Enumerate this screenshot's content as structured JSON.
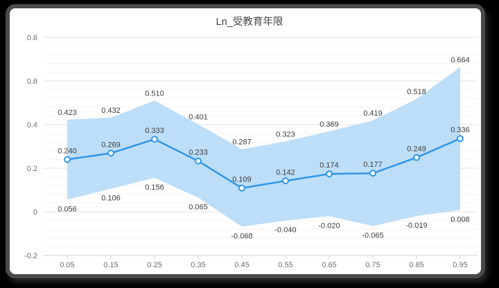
{
  "window": {
    "background": "#000000",
    "frame_color": "#4A4A4A",
    "card_color": "#FFFFFF"
  },
  "chart_data": {
    "type": "line",
    "title": "Ln_受教育年限",
    "categories": [
      "0.05",
      "0.15",
      "0.25",
      "0.35",
      "0.45",
      "0.55",
      "0.65",
      "0.75",
      "0.85",
      "0.95"
    ],
    "series": [
      {
        "name": "upper_bound",
        "values": [
          0.423,
          0.432,
          0.51,
          0.401,
          0.287,
          0.323,
          0.369,
          0.419,
          0.518,
          0.664
        ]
      },
      {
        "name": "estimate",
        "values": [
          0.24,
          0.269,
          0.333,
          0.233,
          0.109,
          0.142,
          0.174,
          0.177,
          0.249,
          0.336
        ]
      },
      {
        "name": "lower_bound",
        "values": [
          0.056,
          0.106,
          0.156,
          0.065,
          -0.068,
          -0.04,
          -0.02,
          -0.065,
          -0.019,
          0.008
        ]
      }
    ],
    "band": {
      "upper_series": "upper_bound",
      "lower_series": "lower_bound"
    },
    "xlabel": "",
    "ylabel": "",
    "ylim": [
      -0.2,
      0.8
    ],
    "yticks": [
      0.8,
      0.6,
      0.4,
      0.2,
      0,
      -0.2
    ],
    "minor_grid_step": 0.04,
    "grid": true,
    "legend": false,
    "data_labels_decimals": 3,
    "colors": {
      "line": "#2E96E8",
      "band": "#BDDEF8",
      "marker_fill": "#FFFFFF",
      "grid_major": "#E2E2E2",
      "grid_minor": "#F4F4F4",
      "axis_line": "#CBD5DD",
      "tick": "#C3CDD6",
      "axis_label": "#6E6E6E",
      "data_label": "#3C3C3C",
      "title": "#444444"
    }
  }
}
